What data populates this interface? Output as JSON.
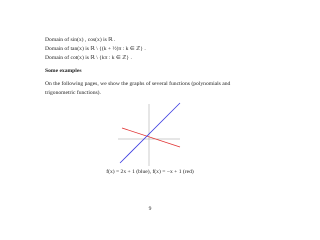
{
  "domains": [
    "Domain of  sin(x) ,  cos(x)  is ℝ .",
    "Domain of  tan(x)  is  ℝ \\ {(k + ½)π : k ∈ ℤ} .",
    "Domain of  cot(x)  is  ℝ \\ {kπ : k ∈ ℤ} ."
  ],
  "section": {
    "title": "Some examples",
    "text": "On the following pages, we show the graphs of several functions (polynomials and trigonometric functions)."
  },
  "figure": {
    "caption": "f(x) = 2x + 1 (blue),   f(x) = −x + 1 (red)"
  },
  "page_number": "9"
}
